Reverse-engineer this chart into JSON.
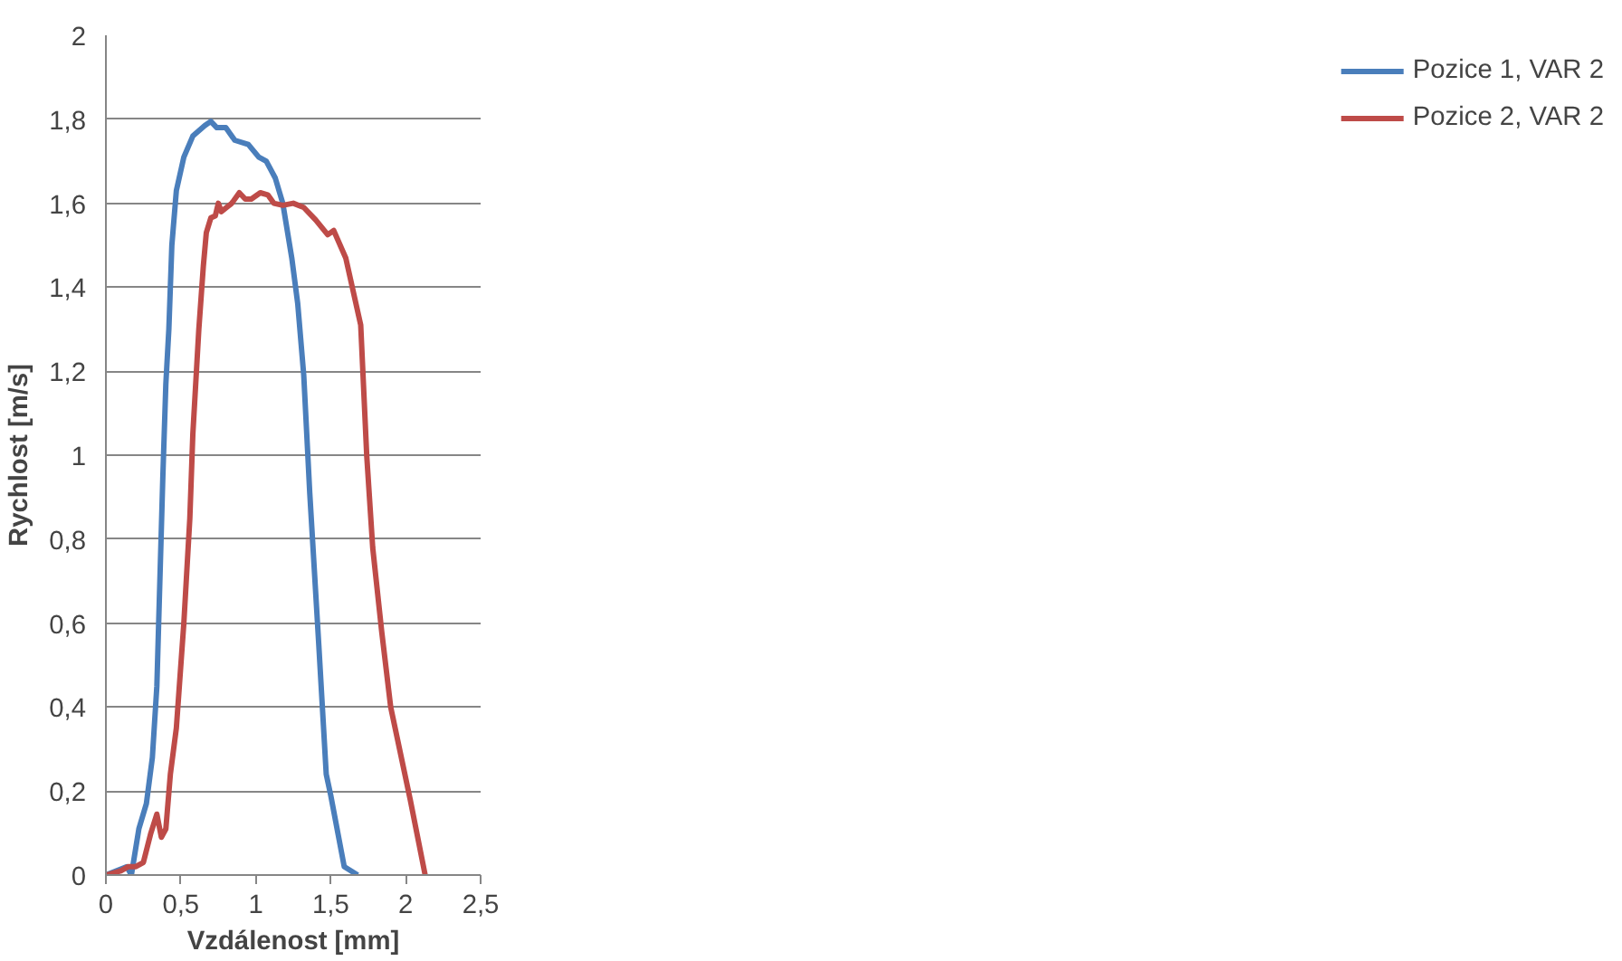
{
  "chart_data": {
    "type": "line",
    "xlabel": "Vzdálenost [mm]",
    "ylabel": "Rychlost [m/s]",
    "xlim": [
      0,
      2.5
    ],
    "xticks": [
      {
        "value": 0,
        "label": "0"
      },
      {
        "value": 0.5,
        "label": "0,5"
      },
      {
        "value": 1,
        "label": "1"
      },
      {
        "value": 1.5,
        "label": "1,5"
      },
      {
        "value": 2,
        "label": "2"
      },
      {
        "value": 2.5,
        "label": "2,5"
      }
    ],
    "ylim": [
      0,
      2
    ],
    "yticks": [
      {
        "value": 0,
        "label": "0"
      },
      {
        "value": 0.2,
        "label": "0,2"
      },
      {
        "value": 0.4,
        "label": "0,4"
      },
      {
        "value": 0.6,
        "label": "0,6"
      },
      {
        "value": 0.8,
        "label": "0,8"
      },
      {
        "value": 1,
        "label": "1"
      },
      {
        "value": 1.2,
        "label": "1,2"
      },
      {
        "value": 1.4,
        "label": "1,4"
      },
      {
        "value": 1.6,
        "label": "1,6"
      },
      {
        "value": 1.8,
        "label": "1,8"
      },
      {
        "value": 2,
        "label": "2"
      }
    ],
    "grid": "y",
    "legend": "right",
    "marker": "none",
    "line_style": "solid",
    "series": [
      {
        "name": "Pozice 1, VAR 2",
        "color": "#4a7ebb",
        "x": [
          0,
          0.14,
          0.17,
          0.22,
          0.27,
          0.31,
          0.34,
          0.36,
          0.38,
          0.4,
          0.42,
          0.44,
          0.47,
          0.52,
          0.58,
          0.66,
          0.7,
          0.74,
          0.8,
          0.86,
          0.95,
          1.02,
          1.07,
          1.13,
          1.18,
          1.24,
          1.28,
          1.32,
          1.36,
          1.42,
          1.47,
          1.5,
          1.59,
          1.68
        ],
        "values": [
          0,
          0.02,
          0,
          0.11,
          0.17,
          0.28,
          0.45,
          0.7,
          0.95,
          1.17,
          1.3,
          1.5,
          1.63,
          1.71,
          1.76,
          1.785,
          1.795,
          1.78,
          1.78,
          1.75,
          1.74,
          1.71,
          1.7,
          1.66,
          1.6,
          1.47,
          1.36,
          1.19,
          0.91,
          0.55,
          0.24,
          0.19,
          0.02,
          0
        ]
      },
      {
        "name": "Pozice 2, VAR 2",
        "color": "#be4b48",
        "x": [
          0,
          0.1,
          0.15,
          0.2,
          0.25,
          0.3,
          0.34,
          0.37,
          0.4,
          0.43,
          0.47,
          0.52,
          0.56,
          0.58,
          0.62,
          0.65,
          0.67,
          0.7,
          0.73,
          0.75,
          0.77,
          0.84,
          0.89,
          0.93,
          0.97,
          1.03,
          1.08,
          1.12,
          1.18,
          1.25,
          1.32,
          1.4,
          1.48,
          1.52,
          1.6,
          1.7,
          1.74,
          1.78,
          1.84,
          1.9,
          2.03,
          2.13
        ],
        "values": [
          0,
          0.01,
          0.02,
          0.02,
          0.03,
          0.1,
          0.145,
          0.09,
          0.11,
          0.24,
          0.35,
          0.6,
          0.85,
          1.05,
          1.3,
          1.45,
          1.53,
          1.565,
          1.57,
          1.6,
          1.58,
          1.6,
          1.625,
          1.61,
          1.61,
          1.625,
          1.62,
          1.6,
          1.595,
          1.6,
          1.59,
          1.56,
          1.525,
          1.535,
          1.47,
          1.31,
          1.0,
          0.78,
          0.58,
          0.4,
          0.18,
          0
        ]
      }
    ]
  }
}
